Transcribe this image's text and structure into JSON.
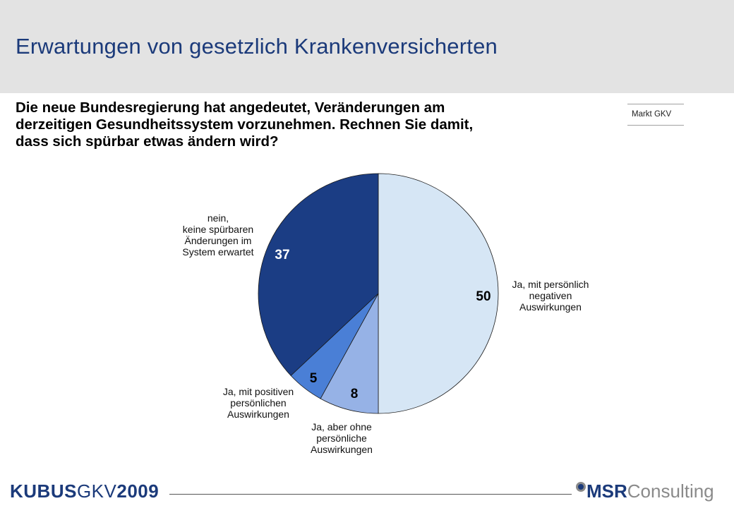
{
  "header": {
    "title": "Erwartungen von gesetzlich Krankenversicherten"
  },
  "question": {
    "lines": [
      "Die neue Bundesregierung hat angedeutet, Veränderungen am",
      "derzeitigen Gesundheitssystem vorzunehmen. Rechnen Sie damit,",
      "dass sich spürbar etwas ändern wird?"
    ]
  },
  "market_tag": "Markt GKV",
  "chart_data": {
    "type": "pie",
    "start_angle_deg": 0,
    "direction": "clockwise",
    "slices": [
      {
        "label_lines": [
          "Ja, mit persönlich",
          "negativen",
          "Auswirkungen"
        ],
        "value": 50,
        "color": "#d6e6f5"
      },
      {
        "label_lines": [
          "Ja, aber ohne",
          "persönliche",
          "Auswirkungen"
        ],
        "value": 8,
        "color": "#96b2e6"
      },
      {
        "label_lines": [
          "Ja, mit positiven",
          "persönlichen",
          "Auswirkungen"
        ],
        "value": 5,
        "color": "#4a7fd6"
      },
      {
        "label_lines": [
          "nein,",
          "keine spürbaren",
          "Änderungen im",
          "System erwartet"
        ],
        "value": 37,
        "color": "#1b3d84"
      }
    ]
  },
  "footer": {
    "brand_bold_1": "KUBUS",
    "brand_normal": "GKV",
    "brand_bold_2": "2009",
    "logo_bold": "MSR",
    "logo_normal": "Consulting"
  }
}
